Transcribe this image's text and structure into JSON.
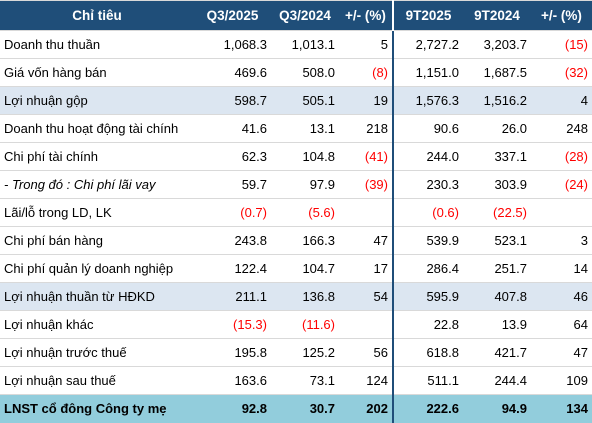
{
  "headers": [
    "Chỉ tiêu",
    "Q3/2025",
    "Q3/2024",
    "+/- (%)",
    "9T2025",
    "9T2024",
    "+/- (%)"
  ],
  "rows": [
    {
      "label": "Doanh thu thuần",
      "cells": [
        "1,068.3",
        "1,013.1",
        "5",
        "2,727.2",
        "3,203.7",
        "(15)"
      ],
      "style": ""
    },
    {
      "label": "Giá vốn hàng bán",
      "cells": [
        "469.6",
        "508.0",
        "(8)",
        "1,151.0",
        "1,687.5",
        "(32)"
      ],
      "style": ""
    },
    {
      "label": "Lợi nhuận gộp",
      "cells": [
        "598.7",
        "505.1",
        "19",
        "1,576.3",
        "1,516.2",
        "4"
      ],
      "style": "hl"
    },
    {
      "label": "Doanh thu hoạt động tài chính",
      "cells": [
        "41.6",
        "13.1",
        "218",
        "90.6",
        "26.0",
        "248"
      ],
      "style": ""
    },
    {
      "label": "Chi phí tài chính",
      "cells": [
        "62.3",
        "104.8",
        "(41)",
        "244.0",
        "337.1",
        "(28)"
      ],
      "style": ""
    },
    {
      "label": "- Trong đó : Chi phí lãi vay",
      "cells": [
        "59.7",
        "97.9",
        "(39)",
        "230.3",
        "303.9",
        "(24)"
      ],
      "style": "italic"
    },
    {
      "label": "Lãi/lỗ trong LD, LK",
      "cells": [
        "(0.7)",
        "(5.6)",
        "",
        "(0.6)",
        "(22.5)",
        ""
      ],
      "style": ""
    },
    {
      "label": "Chi phí bán hàng",
      "cells": [
        "243.8",
        "166.3",
        "47",
        "539.9",
        "523.1",
        "3"
      ],
      "style": ""
    },
    {
      "label": "Chi phí quản lý doanh nghiệp",
      "cells": [
        "122.4",
        "104.7",
        "17",
        "286.4",
        "251.7",
        "14"
      ],
      "style": ""
    },
    {
      "label": "Lợi nhuận thuần từ HĐKD",
      "cells": [
        "211.1",
        "136.8",
        "54",
        "595.9",
        "407.8",
        "46"
      ],
      "style": "hl"
    },
    {
      "label": "Lợi nhuận khác",
      "cells": [
        "(15.3)",
        "(11.6)",
        "",
        "22.8",
        "13.9",
        "64"
      ],
      "style": ""
    },
    {
      "label": "Lợi nhuận trước thuế",
      "cells": [
        "195.8",
        "125.2",
        "56",
        "618.8",
        "421.7",
        "47"
      ],
      "style": ""
    },
    {
      "label": "Lợi nhuận sau thuế",
      "cells": [
        "163.6",
        "73.1",
        "124",
        "511.1",
        "244.4",
        "109"
      ],
      "style": ""
    },
    {
      "label": "LNST cổ đông Công ty mẹ",
      "cells": [
        "92.8",
        "30.7",
        "202",
        "222.6",
        "94.9",
        "134"
      ],
      "style": "final"
    }
  ],
  "colors": {
    "header_bg": "#1f4e79",
    "highlight_bg": "#dce6f1",
    "final_bg": "#92cddc",
    "negative": "#ff0000"
  }
}
